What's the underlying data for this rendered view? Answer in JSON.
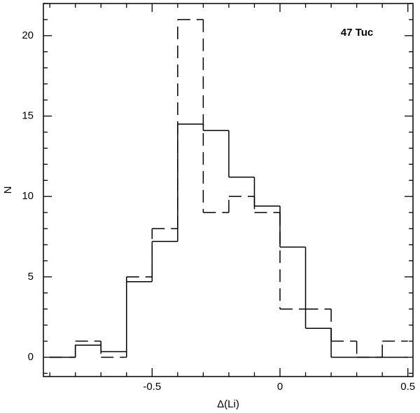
{
  "chart_data": {
    "type": "histogram",
    "xlabel": "Δ(Li)",
    "ylabel": "N",
    "annotation": "47 Tuc",
    "bins": [
      -0.9,
      -0.8,
      -0.7,
      -0.6,
      -0.5,
      -0.4,
      -0.3,
      -0.2,
      -0.1,
      0,
      0.1,
      0.2,
      0.3,
      0.4,
      0.5
    ],
    "series": [
      {
        "color": "#000000",
        "dash": "solid",
        "values": [
          0,
          0.75,
          0.35,
          4.7,
          7.2,
          14.5,
          14.1,
          11.2,
          9.4,
          6.85,
          1.8,
          0,
          0,
          0
        ]
      },
      {
        "color": "#000000",
        "dash": "dashed",
        "values": [
          0,
          1,
          0,
          5,
          8,
          21,
          9,
          10,
          9,
          3,
          3,
          1,
          0,
          1
        ]
      }
    ],
    "xlim": [
      -0.925,
      0.52
    ],
    "ylim": [
      -1.2,
      22
    ],
    "xticks": [
      -0.5,
      0,
      0.5
    ],
    "yticks": [
      0,
      5,
      10,
      15,
      20
    ],
    "xminorticks": [
      -0.9,
      -0.8,
      -0.7,
      -0.6,
      -0.4,
      -0.3,
      -0.2,
      -0.1,
      0.1,
      0.2,
      0.3,
      0.4
    ],
    "yminorticks": [
      -1,
      1,
      2,
      3,
      4,
      6,
      7,
      8,
      9,
      11,
      12,
      13,
      14,
      16,
      17,
      18,
      19,
      21,
      22
    ]
  }
}
